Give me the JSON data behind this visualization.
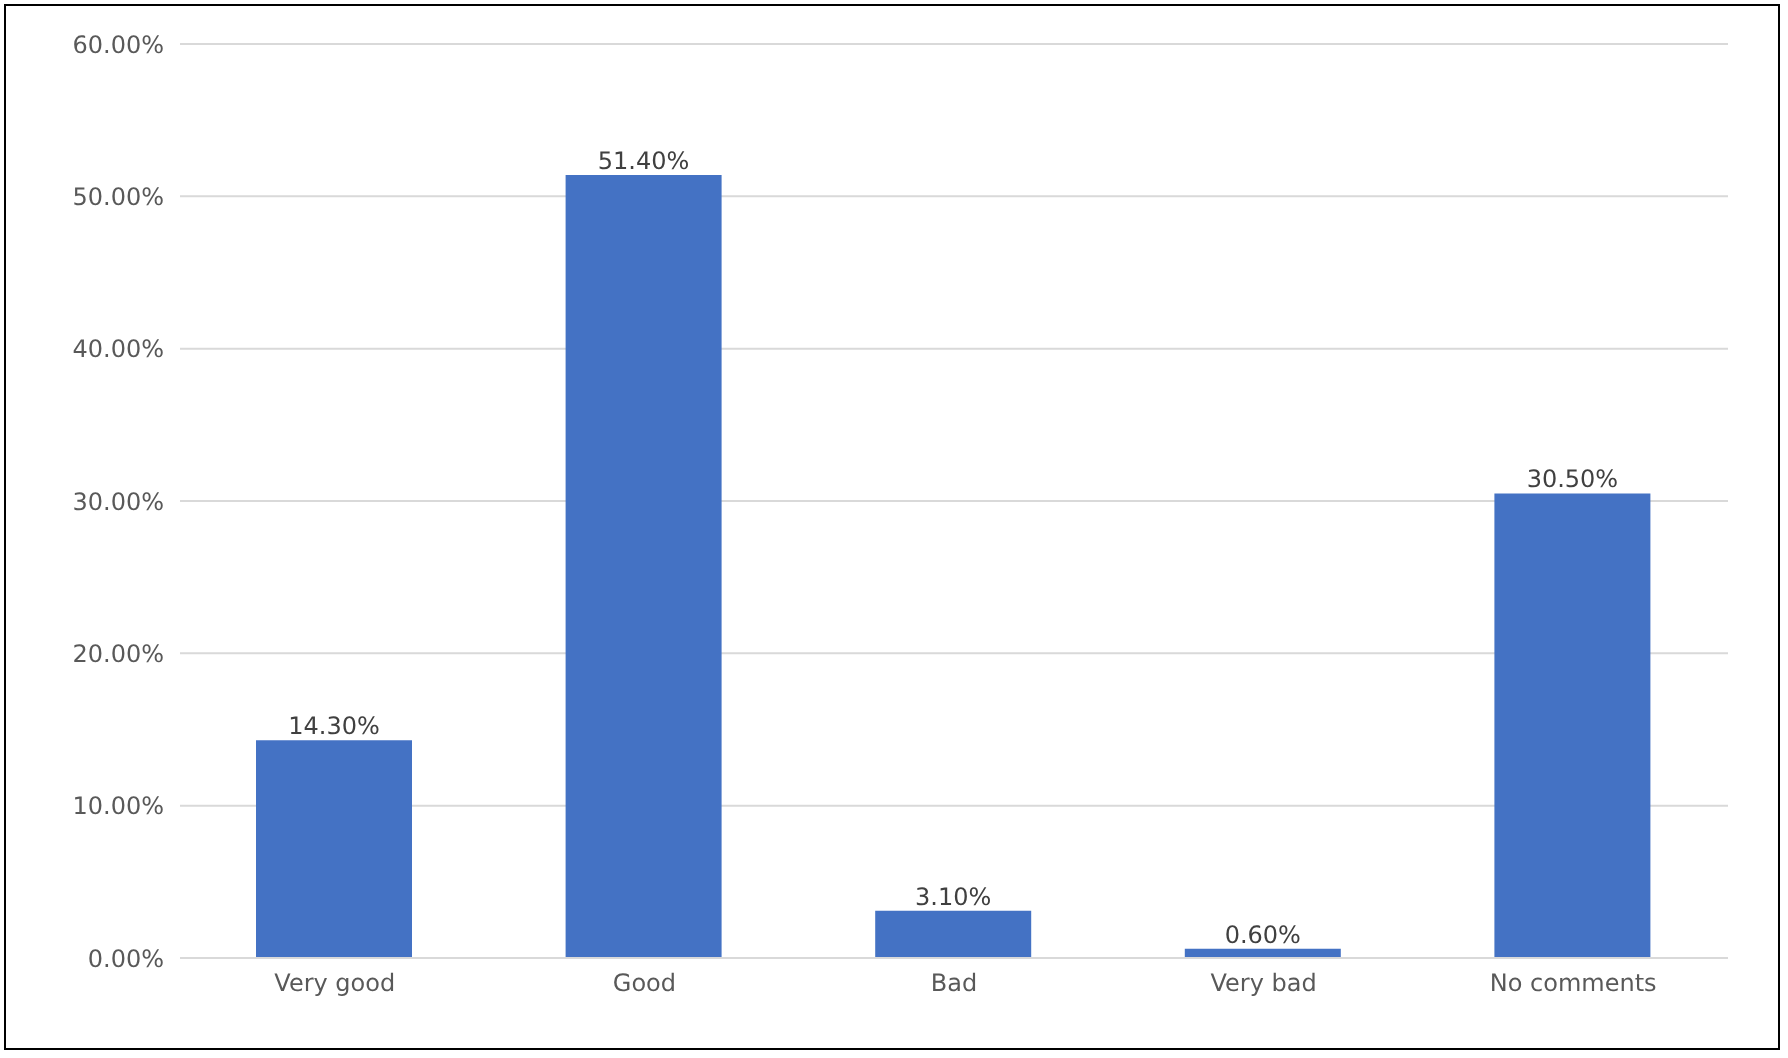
{
  "chart_data": {
    "type": "bar",
    "categories": [
      "Very good",
      "Good",
      "Bad",
      "Very bad",
      "No comments"
    ],
    "values": [
      14.3,
      51.4,
      3.1,
      0.6,
      30.5
    ],
    "value_labels": [
      "14.30%",
      "51.40%",
      "3.10%",
      "0.60%",
      "30.50%"
    ],
    "color": "#4472c4",
    "ylim": [
      0,
      60
    ],
    "yticks": [
      {
        "value": 0,
        "label": "0.00%"
      },
      {
        "value": 10,
        "label": "10.00%"
      },
      {
        "value": 20,
        "label": "20.00%"
      },
      {
        "value": 30,
        "label": "30.00%"
      },
      {
        "value": 40,
        "label": "40.00%"
      },
      {
        "value": 50,
        "label": "50.00%"
      },
      {
        "value": 60,
        "label": "60.00%"
      }
    ],
    "grid": "y",
    "legend": false
  }
}
